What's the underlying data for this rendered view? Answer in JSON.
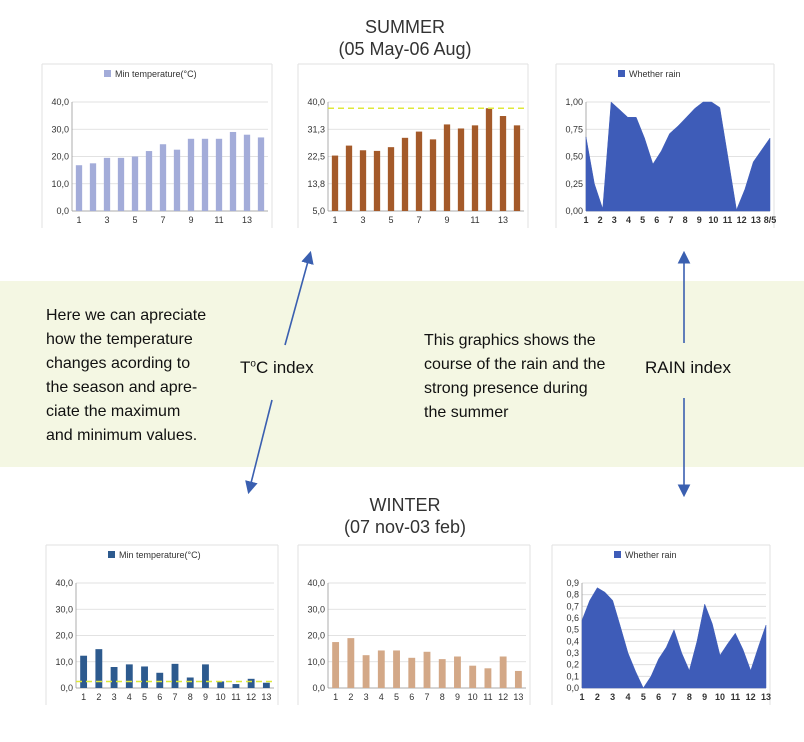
{
  "summer": {
    "title": "SUMMER",
    "subtitle": "(05 May-06 Aug)"
  },
  "winter": {
    "title": "WINTER",
    "subtitle": "(07 nov-03 feb)"
  },
  "notes": {
    "left": [
      "Here we can apreciate",
      "how the temperature",
      "changes acording to",
      "the season and apre-",
      "ciate the maximum",
      "and minimum values."
    ],
    "right": [
      "This graphics shows the",
      "course of the rain and the",
      "strong presence during",
      "the summer"
    ]
  },
  "labels": {
    "temp_index": "ToC index",
    "temp_sup": "o",
    "rain_index": "RAIN index"
  },
  "colors": {
    "summer_min": "#a3acd9",
    "summer_max": "#a45a2a",
    "summer_rain": "#3e5cb8",
    "winter_min": "#2d5a8e",
    "winter_max": "#d3a887",
    "winter_rain": "#3e5cb8",
    "threshold": "#dfe83a",
    "arrow": "#3a5fb0"
  },
  "chart_data": [
    {
      "id": "summer-min",
      "type": "bar",
      "legend": "Min temperature(°C)",
      "x": [
        1,
        2,
        3,
        4,
        5,
        6,
        7,
        8,
        9,
        10,
        11,
        12,
        13,
        14
      ],
      "xticks": [
        "1",
        "3",
        "5",
        "7",
        "9",
        "11",
        "13"
      ],
      "values": [
        16.8,
        17.5,
        19.5,
        19.5,
        20.0,
        22.0,
        24.5,
        22.5,
        26.5,
        26.5,
        26.5,
        29.0,
        28.0,
        27.0
      ],
      "yticks": [
        "0,0",
        "10,0",
        "20,0",
        "30,0",
        "40,0"
      ],
      "ylim": [
        0,
        40
      ],
      "grid": true
    },
    {
      "id": "summer-max",
      "type": "bar",
      "legend": "",
      "x": [
        1,
        2,
        3,
        4,
        5,
        6,
        7,
        8,
        9,
        10,
        11,
        12,
        13,
        14
      ],
      "xticks": [
        "1",
        "3",
        "5",
        "7",
        "9",
        "11",
        "13"
      ],
      "values": [
        22.8,
        26.0,
        24.5,
        24.3,
        25.5,
        28.5,
        30.5,
        28.0,
        32.8,
        31.5,
        32.5,
        38.0,
        35.5,
        32.5
      ],
      "threshold": 38.0,
      "yticks": [
        "5,0",
        "13,8",
        "22,5",
        "31,3",
        "40,0"
      ],
      "ylim": [
        5,
        40
      ],
      "grid": true
    },
    {
      "id": "summer-rain",
      "type": "area",
      "legend": "Whether rain",
      "xticks": [
        "1",
        "2",
        "3",
        "4",
        "5",
        "6",
        "7",
        "8",
        "9",
        "10",
        "11",
        "12",
        "13",
        "8/5"
      ],
      "values": [
        0.68,
        0.25,
        0.02,
        1.0,
        0.93,
        0.86,
        0.86,
        0.67,
        0.43,
        0.55,
        0.71,
        0.78,
        0.86,
        0.94,
        1.0,
        1.0,
        0.95,
        0.48,
        0.01,
        0.2,
        0.45,
        0.56,
        0.67
      ],
      "yticks": [
        "0,00",
        "0,25",
        "0,50",
        "0,75",
        "1,00"
      ],
      "ylim": [
        0,
        1
      ],
      "grid": true
    },
    {
      "id": "winter-min",
      "type": "bar",
      "legend": "Min temperature(°C)",
      "x": [
        1,
        2,
        3,
        4,
        5,
        6,
        7,
        8,
        9,
        10,
        11,
        12,
        13
      ],
      "xticks": [
        "1",
        "2",
        "3",
        "4",
        "5",
        "6",
        "7",
        "8",
        "9",
        "10",
        "11",
        "12",
        "13"
      ],
      "values": [
        12.3,
        14.8,
        8.0,
        9.0,
        8.2,
        5.8,
        9.2,
        4.0,
        9.0,
        2.5,
        1.5,
        3.5,
        2.0
      ],
      "threshold": 2.5,
      "yticks": [
        "0,0",
        "10,0",
        "20,0",
        "30,0",
        "40,0"
      ],
      "ylim": [
        0,
        40
      ],
      "grid": true
    },
    {
      "id": "winter-max",
      "type": "bar",
      "legend": "",
      "x": [
        1,
        2,
        3,
        4,
        5,
        6,
        7,
        8,
        9,
        10,
        11,
        12,
        13
      ],
      "xticks": [
        "1",
        "2",
        "3",
        "4",
        "5",
        "6",
        "7",
        "8",
        "9",
        "10",
        "11",
        "12",
        "13"
      ],
      "values": [
        17.5,
        19.0,
        12.5,
        14.3,
        14.3,
        11.5,
        13.8,
        11.0,
        12.0,
        8.5,
        7.5,
        12.0,
        6.5
      ],
      "yticks": [
        "0,0",
        "10,0",
        "20,0",
        "30,0",
        "40,0"
      ],
      "ylim": [
        0,
        40
      ],
      "grid": true
    },
    {
      "id": "winter-rain",
      "type": "area",
      "legend": "Whether rain",
      "xticks": [
        "1",
        "2",
        "3",
        "4",
        "5",
        "6",
        "7",
        "8",
        "9",
        "10",
        "11",
        "12",
        "13"
      ],
      "values": [
        0.58,
        0.75,
        0.86,
        0.82,
        0.75,
        0.53,
        0.3,
        0.14,
        0.0,
        0.1,
        0.25,
        0.35,
        0.5,
        0.3,
        0.15,
        0.4,
        0.72,
        0.55,
        0.28,
        0.38,
        0.47,
        0.33,
        0.15,
        0.35,
        0.54
      ],
      "yticks": [
        "0,0",
        "0,1",
        "0,2",
        "0,3",
        "0,4",
        "0,5",
        "0,6",
        "0,7",
        "0,8",
        "0,9"
      ],
      "ylim": [
        0,
        0.9
      ],
      "grid": true
    }
  ]
}
